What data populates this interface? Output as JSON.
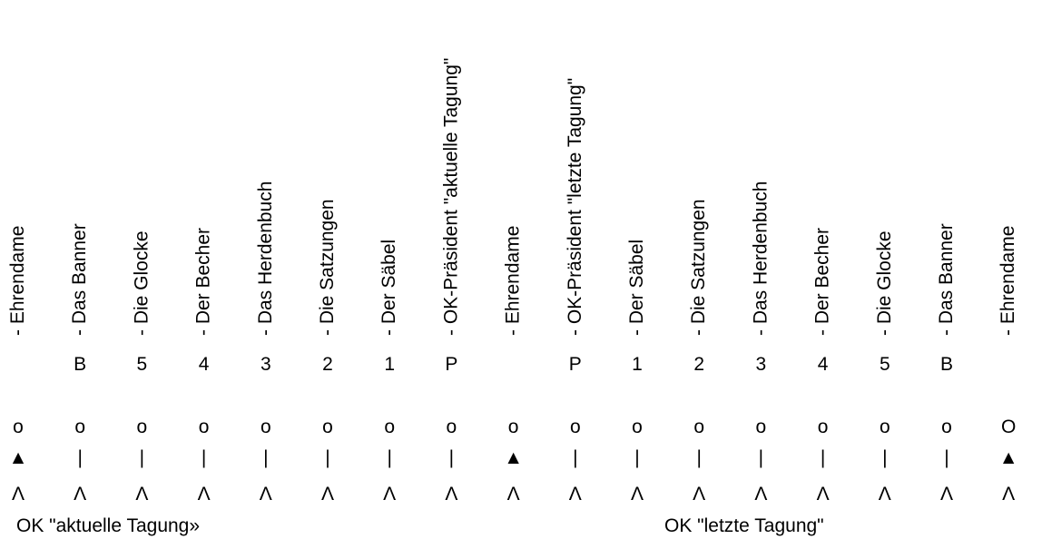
{
  "columns": [
    {
      "label": "- Ehrendame",
      "code": "",
      "circle": "o",
      "marker": "▲",
      "base": "Λ"
    },
    {
      "label": "- Das Banner",
      "code": "B",
      "circle": "o",
      "marker": "|",
      "base": "Λ"
    },
    {
      "label": "- Die Glocke",
      "code": "5",
      "circle": "o",
      "marker": "|",
      "base": "Λ"
    },
    {
      "label": "- Der Becher",
      "code": "4",
      "circle": "o",
      "marker": "|",
      "base": "Λ"
    },
    {
      "label": "- Das Herdenbuch",
      "code": "3",
      "circle": "o",
      "marker": "|",
      "base": "Λ"
    },
    {
      "label": "- Die Satzungen",
      "code": "2",
      "circle": "o",
      "marker": "|",
      "base": "Λ"
    },
    {
      "label": "- Der Säbel",
      "code": "1",
      "circle": "o",
      "marker": "|",
      "base": "Λ"
    },
    {
      "label": "- OK-Präsident \"aktuelle Tagung\"",
      "code": "P",
      "circle": "o",
      "marker": "|",
      "base": "Λ"
    },
    {
      "label": "- Ehrendame",
      "code": "",
      "circle": "o",
      "marker": "▲",
      "base": "Λ"
    },
    {
      "label": "- OK-Präsident \"letzte Tagung\"",
      "code": "P",
      "circle": "o",
      "marker": "|",
      "base": "Λ"
    },
    {
      "label": "- Der Säbel",
      "code": "1",
      "circle": "o",
      "marker": "|",
      "base": "Λ"
    },
    {
      "label": "- Die Satzungen",
      "code": "2",
      "circle": "o",
      "marker": "|",
      "base": "Λ"
    },
    {
      "label": "- Das Herdenbuch",
      "code": "3",
      "circle": "o",
      "marker": "|",
      "base": "Λ"
    },
    {
      "label": "- Der Becher",
      "code": "4",
      "circle": "o",
      "marker": "|",
      "base": "Λ"
    },
    {
      "label": "- Die Glocke",
      "code": "5",
      "circle": "o",
      "marker": "|",
      "base": "Λ"
    },
    {
      "label": "- Das Banner",
      "code": "B",
      "circle": "o",
      "marker": "|",
      "base": "Λ"
    },
    {
      "label": "- Ehrendame",
      "code": "",
      "circle": "O",
      "marker": "▲",
      "base": "Λ"
    }
  ],
  "captions": {
    "left": "OK \"aktuelle Tagung»",
    "right": "OK \"letzte Tagung\""
  }
}
